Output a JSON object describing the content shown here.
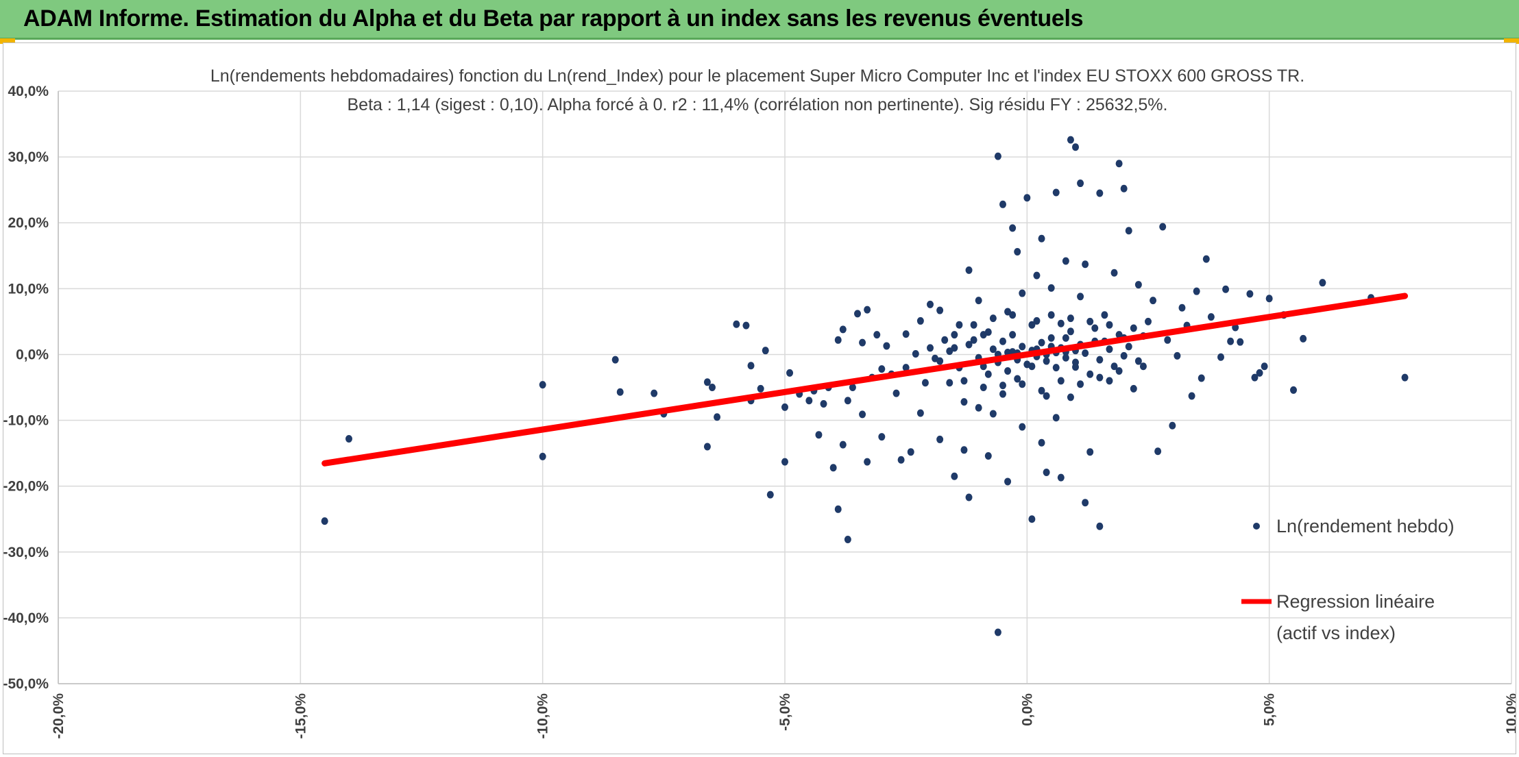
{
  "banner": {
    "title": "ADAM Informe. Estimation du Alpha et du Beta par rapport à un index sans les revenus éventuels",
    "color": "#7fc97f"
  },
  "chart_data": {
    "type": "scatter",
    "title": "Ln(rendements hebdomadaires) fonction du Ln(rend_Index) pour le placement Super Micro Computer Inc et l'index EU STOXX 600 GROSS TR.",
    "subtitle": "Beta : 1,14 (sigest : 0,10). Alpha forcé à 0. r2 : 11,4% (corrélation non pertinente). Sig résidu FY : 25632,5%.",
    "xlabel": "",
    "ylabel": "",
    "xlim": [
      -0.2,
      0.1
    ],
    "ylim": [
      -0.5,
      0.4
    ],
    "x_ticks": [
      -0.2,
      -0.15,
      -0.1,
      -0.05,
      0.0,
      0.05,
      0.1
    ],
    "x_tick_labels": [
      "-20,0%",
      "-15,0%",
      "-10,0%",
      "-5,0%",
      "0,0%",
      "5,0%",
      "10,0%"
    ],
    "y_ticks": [
      0.4,
      0.3,
      0.2,
      0.1,
      0.0,
      -0.1,
      -0.2,
      -0.3,
      -0.4,
      -0.5
    ],
    "y_tick_labels": [
      "40,0%",
      "30,0%",
      "20,0%",
      "10,0%",
      "0,0%",
      "-10,0%",
      "-20,0%",
      "-30,0%",
      "-40,0%",
      "-50,0%"
    ],
    "grid": true,
    "legend_position": "bottom-right",
    "series": [
      {
        "name": "Ln(rendement hebdo)",
        "kind": "scatter",
        "color": "#1f3a68",
        "points": [
          [
            -0.145,
            -0.253
          ],
          [
            -0.14,
            -0.128
          ],
          [
            -0.1,
            -0.046
          ],
          [
            -0.1,
            -0.155
          ],
          [
            -0.085,
            -0.008
          ],
          [
            -0.084,
            -0.057
          ],
          [
            -0.077,
            -0.059
          ],
          [
            -0.075,
            -0.09
          ],
          [
            -0.066,
            -0.042
          ],
          [
            -0.066,
            -0.14
          ],
          [
            -0.065,
            -0.05
          ],
          [
            -0.064,
            -0.095
          ],
          [
            -0.06,
            0.046
          ],
          [
            -0.058,
            0.044
          ],
          [
            -0.057,
            -0.017
          ],
          [
            -0.057,
            -0.07
          ],
          [
            -0.055,
            -0.052
          ],
          [
            -0.054,
            0.006
          ],
          [
            -0.053,
            -0.213
          ],
          [
            -0.05,
            -0.08
          ],
          [
            -0.05,
            -0.163
          ],
          [
            -0.049,
            -0.028
          ],
          [
            -0.047,
            -0.06
          ],
          [
            -0.045,
            -0.07
          ],
          [
            -0.044,
            -0.055
          ],
          [
            -0.043,
            -0.122
          ],
          [
            -0.042,
            -0.075
          ],
          [
            -0.041,
            -0.05
          ],
          [
            -0.04,
            -0.172
          ],
          [
            -0.039,
            -0.235
          ],
          [
            -0.039,
            0.022
          ],
          [
            -0.038,
            -0.137
          ],
          [
            -0.038,
            0.038
          ],
          [
            -0.037,
            -0.07
          ],
          [
            -0.037,
            -0.281
          ],
          [
            -0.036,
            -0.05
          ],
          [
            -0.035,
            0.062
          ],
          [
            -0.034,
            0.018
          ],
          [
            -0.034,
            -0.091
          ],
          [
            -0.033,
            -0.163
          ],
          [
            -0.033,
            0.068
          ],
          [
            -0.032,
            -0.035
          ],
          [
            -0.031,
            0.03
          ],
          [
            -0.03,
            -0.125
          ],
          [
            -0.03,
            -0.022
          ],
          [
            -0.029,
            0.013
          ],
          [
            -0.028,
            -0.03
          ],
          [
            -0.027,
            -0.059
          ],
          [
            -0.026,
            -0.16
          ],
          [
            -0.025,
            -0.02
          ],
          [
            -0.025,
            0.031
          ],
          [
            -0.024,
            -0.148
          ],
          [
            -0.023,
            0.001
          ],
          [
            -0.022,
            -0.089
          ],
          [
            -0.022,
            0.051
          ],
          [
            -0.021,
            -0.043
          ],
          [
            -0.02,
            0.076
          ],
          [
            -0.019,
            -0.006
          ],
          [
            -0.018,
            -0.129
          ],
          [
            -0.018,
            0.067
          ],
          [
            -0.017,
            0.022
          ],
          [
            -0.016,
            -0.043
          ],
          [
            -0.015,
            -0.185
          ],
          [
            -0.015,
            0.01
          ],
          [
            -0.014,
            0.045
          ],
          [
            -0.013,
            -0.072
          ],
          [
            -0.013,
            -0.145
          ],
          [
            -0.012,
            -0.217
          ],
          [
            -0.012,
            0.128
          ],
          [
            -0.011,
            0.022
          ],
          [
            -0.01,
            -0.081
          ],
          [
            -0.01,
            0.082
          ],
          [
            -0.009,
            -0.018
          ],
          [
            -0.008,
            -0.154
          ],
          [
            -0.008,
            0.034
          ],
          [
            -0.007,
            -0.09
          ],
          [
            -0.006,
            -0.422
          ],
          [
            -0.006,
            0.301
          ],
          [
            -0.005,
            0.228
          ],
          [
            -0.005,
            -0.047
          ],
          [
            -0.004,
            0.065
          ],
          [
            -0.004,
            -0.193
          ],
          [
            -0.003,
            0.192
          ],
          [
            -0.003,
            0.03
          ],
          [
            -0.002,
            -0.037
          ],
          [
            -0.002,
            0.156
          ],
          [
            -0.001,
            -0.11
          ],
          [
            -0.001,
            0.093
          ],
          [
            0.0,
            0.238
          ],
          [
            0.001,
            -0.018
          ],
          [
            0.001,
            -0.25
          ],
          [
            0.002,
            0.12
          ],
          [
            0.002,
            0.051
          ],
          [
            0.003,
            -0.134
          ],
          [
            0.003,
            0.176
          ],
          [
            0.004,
            -0.063
          ],
          [
            0.004,
            -0.179
          ],
          [
            0.005,
            0.101
          ],
          [
            0.005,
            0.012
          ],
          [
            0.006,
            -0.096
          ],
          [
            0.006,
            0.246
          ],
          [
            0.007,
            0.047
          ],
          [
            0.007,
            -0.187
          ],
          [
            0.008,
            0.025
          ],
          [
            0.008,
            0.142
          ],
          [
            0.009,
            -0.065
          ],
          [
            0.009,
            0.326
          ],
          [
            0.01,
            0.315
          ],
          [
            0.01,
            -0.019
          ],
          [
            0.011,
            0.26
          ],
          [
            0.011,
            0.088
          ],
          [
            0.012,
            -0.225
          ],
          [
            0.012,
            0.137
          ],
          [
            0.013,
            -0.148
          ],
          [
            0.014,
            0.02
          ],
          [
            0.015,
            -0.261
          ],
          [
            0.015,
            0.245
          ],
          [
            0.016,
            0.06
          ],
          [
            0.017,
            -0.04
          ],
          [
            0.018,
            0.124
          ],
          [
            0.019,
            0.29
          ],
          [
            0.02,
            0.252
          ],
          [
            0.02,
            0.025
          ],
          [
            0.021,
            0.188
          ],
          [
            0.022,
            -0.052
          ],
          [
            0.023,
            0.106
          ],
          [
            0.024,
            -0.018
          ],
          [
            0.025,
            0.05
          ],
          [
            0.026,
            0.082
          ],
          [
            0.027,
            -0.147
          ],
          [
            0.028,
            0.194
          ],
          [
            0.029,
            0.022
          ],
          [
            0.03,
            -0.108
          ],
          [
            0.031,
            -0.002
          ],
          [
            0.032,
            0.071
          ],
          [
            0.033,
            0.044
          ],
          [
            0.034,
            -0.063
          ],
          [
            0.035,
            0.096
          ],
          [
            0.036,
            -0.036
          ],
          [
            0.037,
            0.145
          ],
          [
            0.038,
            0.057
          ],
          [
            0.04,
            -0.004
          ],
          [
            0.041,
            0.099
          ],
          [
            0.042,
            0.02
          ],
          [
            0.043,
            0.041
          ],
          [
            0.044,
            0.019
          ],
          [
            0.046,
            0.092
          ],
          [
            0.047,
            -0.035
          ],
          [
            0.048,
            -0.028
          ],
          [
            0.049,
            -0.018
          ],
          [
            0.05,
            0.085
          ],
          [
            0.053,
            0.06
          ],
          [
            0.055,
            -0.054
          ],
          [
            0.057,
            0.024
          ],
          [
            0.061,
            0.109
          ],
          [
            0.071,
            0.086
          ],
          [
            0.078,
            -0.035
          ],
          [
            -0.02,
            0.01
          ],
          [
            -0.018,
            -0.01
          ],
          [
            -0.016,
            0.005
          ],
          [
            -0.014,
            -0.02
          ],
          [
            -0.012,
            0.015
          ],
          [
            -0.01,
            -0.005
          ],
          [
            -0.009,
            0.03
          ],
          [
            -0.008,
            -0.03
          ],
          [
            -0.007,
            0.008
          ],
          [
            -0.006,
            -0.012
          ],
          [
            -0.005,
            0.02
          ],
          [
            -0.004,
            -0.025
          ],
          [
            -0.003,
            0.004
          ],
          [
            -0.002,
            -0.008
          ],
          [
            -0.001,
            0.012
          ],
          [
            0.0,
            -0.015
          ],
          [
            0.001,
            0.006
          ],
          [
            0.002,
            -0.003
          ],
          [
            0.003,
            0.018
          ],
          [
            0.004,
            -0.01
          ],
          [
            0.005,
            0.025
          ],
          [
            0.006,
            -0.02
          ],
          [
            0.007,
            0.01
          ],
          [
            0.008,
            -0.005
          ],
          [
            0.009,
            0.035
          ],
          [
            0.01,
            -0.012
          ],
          [
            0.011,
            0.015
          ],
          [
            0.012,
            0.002
          ],
          [
            0.013,
            -0.03
          ],
          [
            0.014,
            0.04
          ],
          [
            0.015,
            -0.008
          ],
          [
            0.016,
            0.02
          ],
          [
            0.017,
            0.008
          ],
          [
            0.018,
            -0.018
          ],
          [
            0.019,
            0.03
          ],
          [
            0.02,
            -0.002
          ],
          [
            0.021,
            0.012
          ],
          [
            0.022,
            0.04
          ],
          [
            0.023,
            -0.01
          ],
          [
            0.024,
            0.028
          ],
          [
            -0.015,
            0.03
          ],
          [
            -0.013,
            -0.04
          ],
          [
            -0.011,
            0.045
          ],
          [
            -0.009,
            -0.05
          ],
          [
            -0.007,
            0.055
          ],
          [
            -0.005,
            -0.06
          ],
          [
            -0.003,
            0.06
          ],
          [
            -0.001,
            -0.045
          ],
          [
            0.001,
            0.045
          ],
          [
            0.003,
            -0.055
          ],
          [
            0.005,
            0.06
          ],
          [
            0.007,
            -0.04
          ],
          [
            0.009,
            0.055
          ],
          [
            0.011,
            -0.045
          ],
          [
            0.013,
            0.05
          ],
          [
            0.015,
            -0.035
          ],
          [
            0.017,
            0.045
          ],
          [
            0.019,
            -0.025
          ],
          [
            -0.004,
            0.003
          ],
          [
            0.002,
            0.008
          ],
          [
            0.006,
            0.003
          ],
          [
            -0.006,
            0.0
          ],
          [
            0.004,
            0.0
          ],
          [
            0.008,
            0.004
          ],
          [
            -0.002,
            0.002
          ],
          [
            0.01,
            0.006
          ]
        ]
      },
      {
        "name": "Regression linéaire",
        "name_line2": "(actif vs index)",
        "kind": "line",
        "color": "#ff0000",
        "x": [
          -0.145,
          0.078
        ],
        "y": [
          -0.1653,
          0.0889
        ]
      }
    ]
  }
}
